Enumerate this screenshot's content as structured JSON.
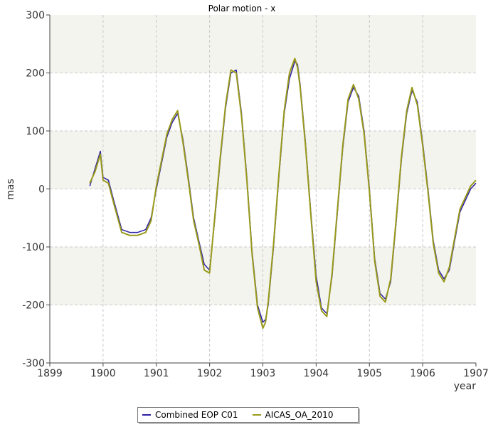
{
  "chart_data": {
    "type": "line",
    "title": "Polar motion - x",
    "xlabel": "year",
    "ylabel": "mas",
    "xlim": [
      1899,
      1907
    ],
    "ylim": [
      -300,
      300
    ],
    "x_ticks": [
      1899,
      1900,
      1901,
      1902,
      1903,
      1904,
      1905,
      1906,
      1907
    ],
    "y_ticks": [
      300,
      200,
      100,
      0,
      -100,
      -200,
      -300
    ],
    "grid": true,
    "legend_position": "bottom",
    "colors": {
      "plot_band": "#f4f4ee",
      "grid": "#c8c8c8"
    },
    "series": [
      {
        "name": "Combined EOP C01",
        "color": "#2b1fa8",
        "x": [
          1899.75,
          1899.85,
          1899.95,
          1900.0,
          1900.1,
          1900.2,
          1900.35,
          1900.5,
          1900.65,
          1900.8,
          1900.9,
          1901.0,
          1901.1,
          1901.2,
          1901.3,
          1901.4,
          1901.5,
          1901.6,
          1901.7,
          1901.8,
          1901.9,
          1902.0,
          1902.1,
          1902.2,
          1902.3,
          1902.4,
          1902.5,
          1902.6,
          1902.7,
          1902.8,
          1902.9,
          1903.0,
          1903.05,
          1903.1,
          1903.2,
          1903.3,
          1903.4,
          1903.5,
          1903.6,
          1903.65,
          1903.7,
          1903.8,
          1903.9,
          1904.0,
          1904.1,
          1904.2,
          1904.3,
          1904.4,
          1904.5,
          1904.6,
          1904.7,
          1904.8,
          1904.9,
          1905.0,
          1905.1,
          1905.2,
          1905.3,
          1905.4,
          1905.5,
          1905.6,
          1905.7,
          1905.8,
          1905.9,
          1906.0,
          1906.1,
          1906.2,
          1906.3,
          1906.4,
          1906.5,
          1906.6,
          1906.7,
          1906.8,
          1906.9,
          1907.0
        ],
        "values": [
          5,
          35,
          65,
          20,
          15,
          -20,
          -70,
          -75,
          -75,
          -70,
          -50,
          0,
          45,
          90,
          115,
          130,
          85,
          20,
          -50,
          -90,
          -130,
          -140,
          -50,
          50,
          140,
          200,
          205,
          130,
          20,
          -110,
          -200,
          -230,
          -225,
          -200,
          -100,
          20,
          130,
          190,
          220,
          215,
          180,
          80,
          -40,
          -150,
          -205,
          -215,
          -150,
          -40,
          70,
          150,
          175,
          160,
          100,
          0,
          -120,
          -180,
          -190,
          -160,
          -60,
          50,
          130,
          170,
          150,
          80,
          0,
          -90,
          -140,
          -155,
          -140,
          -90,
          -40,
          -20,
          0,
          10
        ]
      },
      {
        "name": "AICAS_OA_2010",
        "color": "#999a1c",
        "x": [
          1899.75,
          1899.85,
          1899.95,
          1900.0,
          1900.1,
          1900.2,
          1900.35,
          1900.5,
          1900.65,
          1900.8,
          1900.9,
          1901.0,
          1901.1,
          1901.2,
          1901.3,
          1901.4,
          1901.5,
          1901.6,
          1901.7,
          1901.8,
          1901.9,
          1902.0,
          1902.1,
          1902.2,
          1902.3,
          1902.4,
          1902.5,
          1902.6,
          1902.7,
          1902.8,
          1902.9,
          1903.0,
          1903.05,
          1903.1,
          1903.2,
          1903.3,
          1903.4,
          1903.5,
          1903.6,
          1903.65,
          1903.7,
          1903.8,
          1903.9,
          1904.0,
          1904.1,
          1904.2,
          1904.3,
          1904.4,
          1904.5,
          1904.6,
          1904.7,
          1904.8,
          1904.9,
          1905.0,
          1905.1,
          1905.2,
          1905.3,
          1905.4,
          1905.5,
          1905.6,
          1905.7,
          1905.8,
          1905.9,
          1906.0,
          1906.1,
          1906.2,
          1906.3,
          1906.4,
          1906.5,
          1906.6,
          1906.7,
          1906.8,
          1906.9,
          1907.0
        ],
        "values": [
          10,
          30,
          60,
          15,
          10,
          -25,
          -75,
          -80,
          -80,
          -75,
          -55,
          5,
          50,
          95,
          120,
          135,
          80,
          15,
          -55,
          -95,
          -140,
          -145,
          -45,
          55,
          145,
          205,
          200,
          125,
          15,
          -115,
          -205,
          -240,
          -230,
          -195,
          -95,
          25,
          135,
          200,
          225,
          210,
          175,
          75,
          -45,
          -160,
          -210,
          -220,
          -145,
          -35,
          75,
          155,
          180,
          155,
          95,
          -5,
          -125,
          -185,
          -195,
          -155,
          -55,
          55,
          135,
          175,
          145,
          75,
          -5,
          -95,
          -145,
          -160,
          -135,
          -85,
          -35,
          -15,
          5,
          15
        ]
      }
    ]
  }
}
